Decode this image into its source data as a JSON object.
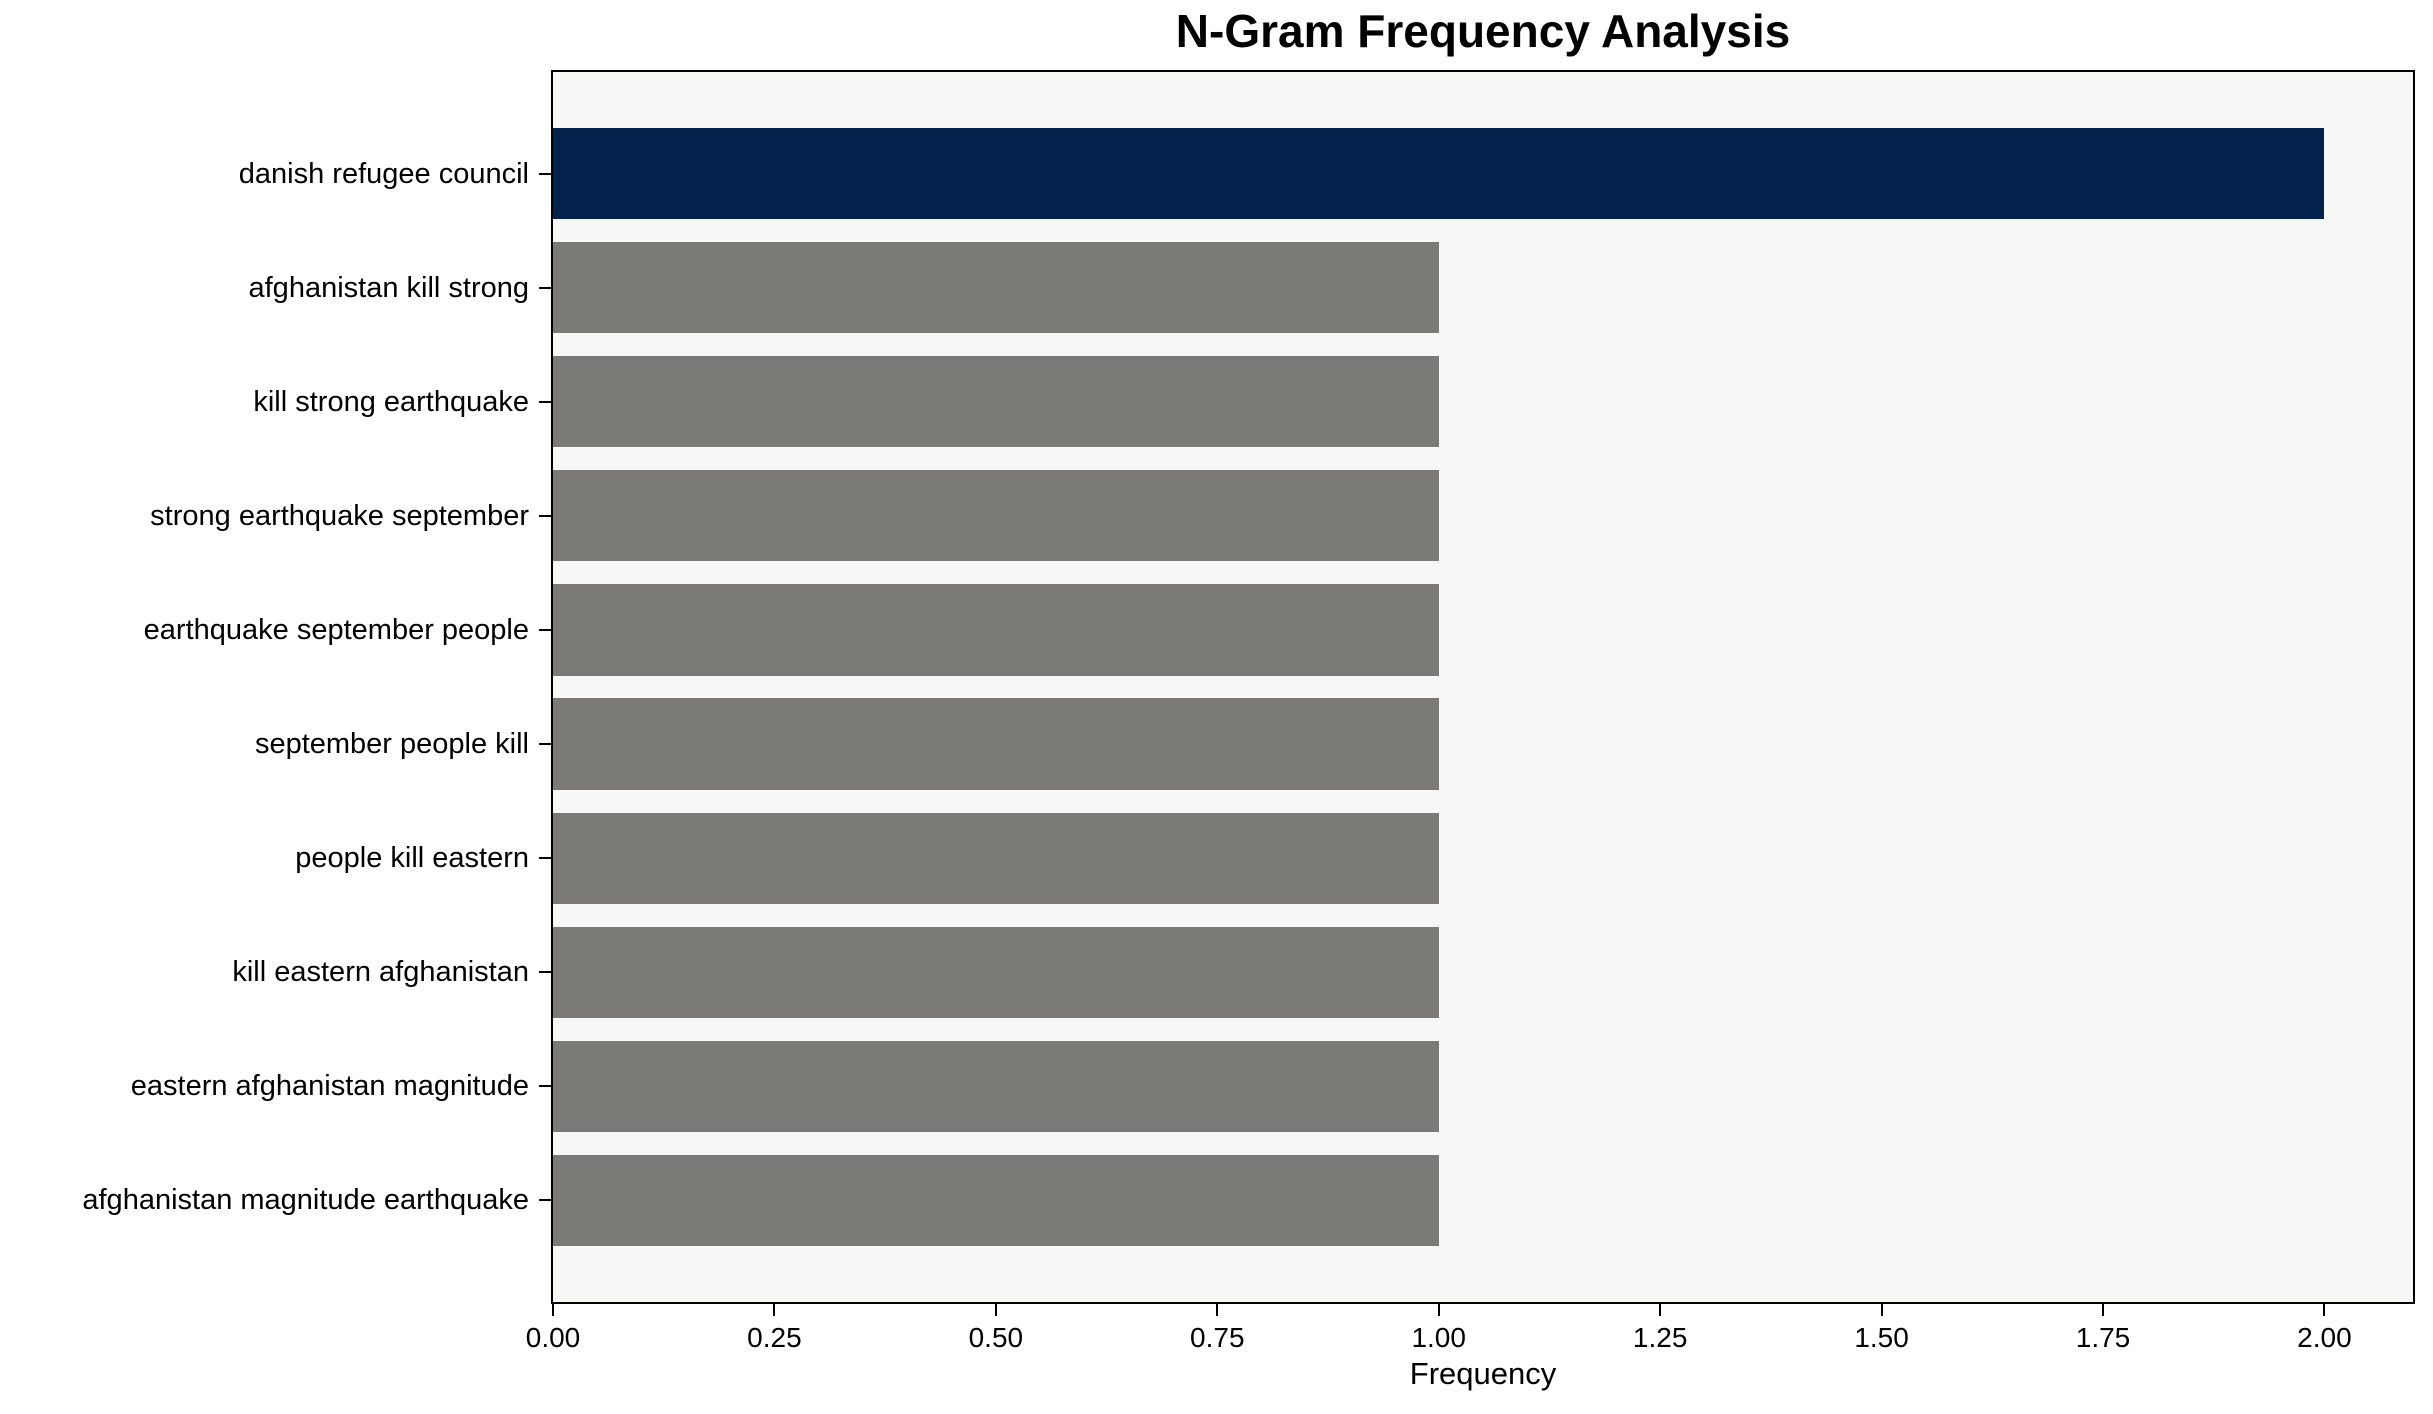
{
  "chart_data": {
    "type": "bar",
    "orientation": "horizontal",
    "title": "N-Gram Frequency Analysis",
    "xlabel": "Frequency",
    "ylabel": "",
    "categories": [
      "danish refugee council",
      "afghanistan kill strong",
      "kill strong earthquake",
      "strong earthquake september",
      "earthquake september people",
      "september people kill",
      "people kill eastern",
      "kill eastern afghanistan",
      "eastern afghanistan magnitude",
      "afghanistan magnitude earthquake"
    ],
    "values": [
      2,
      1,
      1,
      1,
      1,
      1,
      1,
      1,
      1,
      1
    ],
    "xlim": [
      0,
      2.1
    ],
    "xticks": [
      0,
      0.25,
      0.5,
      0.75,
      1.0,
      1.25,
      1.5,
      1.75,
      2.0
    ],
    "xtick_labels": [
      "0.00",
      "0.25",
      "0.50",
      "0.75",
      "1.00",
      "1.25",
      "1.50",
      "1.75",
      "2.00"
    ],
    "highlight_index": 0,
    "colors": {
      "highlight_bar": "#04234c",
      "default_bar": "#7b7a77",
      "plot_background": "#f7f7f6",
      "figure_background": "#ffffff",
      "spine": "#000000",
      "text": "#000000"
    },
    "grid": "off",
    "legend": "none"
  }
}
